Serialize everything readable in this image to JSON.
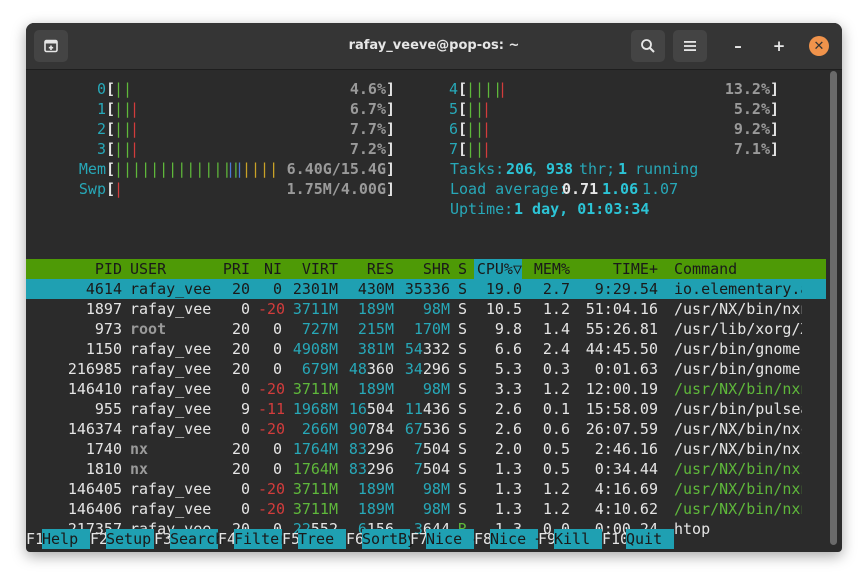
{
  "window": {
    "title": "rafay_veeve@pop-os: ~"
  },
  "titlebar_icons": {
    "new_tab": "new-tab-icon",
    "search": "search-icon",
    "menu": "hamburger-menu-icon",
    "minimize": "minimize-icon",
    "maximize": "maximize-icon",
    "close": "close-icon"
  },
  "window_controls": {
    "minimize": "–",
    "maximize": "+",
    "close": "✕"
  },
  "cpus": [
    {
      "id": "0",
      "bars": [
        [
          "||",
          "green"
        ]
      ],
      "percent": "4.6%"
    },
    {
      "id": "1",
      "bars": [
        [
          "||",
          "green"
        ],
        [
          "|",
          "red"
        ]
      ],
      "percent": "6.7%"
    },
    {
      "id": "2",
      "bars": [
        [
          "||",
          "green"
        ],
        [
          "|",
          "red"
        ]
      ],
      "percent": "7.7%"
    },
    {
      "id": "3",
      "bars": [
        [
          "||",
          "green"
        ],
        [
          "|",
          "red"
        ]
      ],
      "percent": "7.2%"
    },
    {
      "id": "4",
      "bars": [
        [
          "||||",
          "green"
        ],
        [
          "|",
          "red"
        ]
      ],
      "percent": "13.2%"
    },
    {
      "id": "5",
      "bars": [
        [
          "||",
          "green"
        ],
        [
          "|",
          "red"
        ]
      ],
      "percent": "5.2%"
    },
    {
      "id": "6",
      "bars": [
        [
          "||",
          "green"
        ],
        [
          "|",
          "red"
        ]
      ],
      "percent": "9.2%"
    },
    {
      "id": "7",
      "bars": [
        [
          "||",
          "green"
        ],
        [
          "|",
          "red"
        ]
      ],
      "percent": "7.1%"
    }
  ],
  "mem": {
    "label": "Mem",
    "bars": [
      [
        "||||||||||||||",
        "green"
      ],
      [
        "||",
        "blue"
      ],
      [
        "||||",
        "yellow"
      ]
    ],
    "value": "6.40G/15.4G"
  },
  "swp": {
    "label": "Swp",
    "bars": [
      [
        "|",
        "red"
      ]
    ],
    "value": "1.75M/4.00G"
  },
  "tasks": {
    "label": "Tasks: ",
    "count": "206",
    "sep": ", ",
    "threads": "938",
    "thr_label": " thr; ",
    "running": "1",
    "running_label": " running"
  },
  "load": {
    "label": "Load average: ",
    "one": "0.71",
    "five": "1.06",
    "fifteen": "1.07"
  },
  "uptime": {
    "label": "Uptime: ",
    "value": "1 day, 01:03:34"
  },
  "columns": [
    "PID",
    "USER",
    "PRI",
    "NI",
    "VIRT",
    "RES",
    "SHR",
    "S",
    "CPU%▽",
    "MEM%",
    "TIME+",
    "Command"
  ],
  "processes": [
    {
      "pid": "4614",
      "user": "rafay_vee",
      "pri": "20",
      "ni": "0",
      "virt": "2301M",
      "res": "430M",
      "shr": "35336",
      "s": "S",
      "cpu": "19.0",
      "mem": "2.7",
      "time": "9:29.54",
      "cmd": "io.elementary.a",
      "selected": true
    },
    {
      "pid": "1897",
      "user": "rafay_vee",
      "pri": "0",
      "ni": "-20",
      "virt": "3711M",
      "res": "189M",
      "shr": "98M",
      "s": "S",
      "cpu": "10.5",
      "mem": "1.2",
      "time": "51:04.16",
      "cmd": "/usr/NX/bin/nxn"
    },
    {
      "pid": "973",
      "user": "root",
      "pri": "20",
      "ni": "0",
      "virt": "727M",
      "res": "215M",
      "shr": "170M",
      "s": "S",
      "cpu": "9.8",
      "mem": "1.4",
      "time": "55:26.81",
      "cmd": "/usr/lib/xorg/X"
    },
    {
      "pid": "1150",
      "user": "rafay_vee",
      "pri": "20",
      "ni": "0",
      "virt": "4908M",
      "res": "381M",
      "shr": "54332",
      "s": "S",
      "cpu": "6.6",
      "mem": "2.4",
      "time": "44:45.50",
      "cmd": "/usr/bin/gnome-"
    },
    {
      "pid": "216985",
      "user": "rafay_vee",
      "pri": "20",
      "ni": "0",
      "virt": "679M",
      "res": "48360",
      "shr": "34296",
      "s": "S",
      "cpu": "5.3",
      "mem": "0.3",
      "time": "0:01.63",
      "cmd": "/usr/bin/gnome-"
    },
    {
      "pid": "146410",
      "user": "rafay_vee",
      "pri": "0",
      "ni": "-20",
      "virt": "3711M",
      "res": "189M",
      "shr": "98M",
      "s": "S",
      "cpu": "3.3",
      "mem": "1.2",
      "time": "12:00.19",
      "cmd": "/usr/NX/bin/nxn",
      "thread": true
    },
    {
      "pid": "955",
      "user": "rafay_vee",
      "pri": "9",
      "ni": "-11",
      "virt": "1968M",
      "res": "16504",
      "shr": "11436",
      "s": "S",
      "cpu": "2.6",
      "mem": "0.1",
      "time": "15:58.09",
      "cmd": "/usr/bin/pulsea"
    },
    {
      "pid": "146374",
      "user": "rafay_vee",
      "pri": "0",
      "ni": "-20",
      "virt": "266M",
      "res": "90784",
      "shr": "67536",
      "s": "S",
      "cpu": "2.6",
      "mem": "0.6",
      "time": "26:07.59",
      "cmd": "/usr/NX/bin/nxc"
    },
    {
      "pid": "1740",
      "user": "nx",
      "pri": "20",
      "ni": "0",
      "virt": "1764M",
      "res": "83296",
      "shr": "7504",
      "s": "S",
      "cpu": "2.0",
      "mem": "0.5",
      "time": "2:46.16",
      "cmd": "/usr/NX/bin/nxs"
    },
    {
      "pid": "1810",
      "user": "nx",
      "pri": "20",
      "ni": "0",
      "virt": "1764M",
      "res": "83296",
      "shr": "7504",
      "s": "S",
      "cpu": "1.3",
      "mem": "0.5",
      "time": "0:34.44",
      "cmd": "/usr/NX/bin/nxs",
      "thread": true
    },
    {
      "pid": "146405",
      "user": "rafay_vee",
      "pri": "0",
      "ni": "-20",
      "virt": "3711M",
      "res": "189M",
      "shr": "98M",
      "s": "S",
      "cpu": "1.3",
      "mem": "1.2",
      "time": "4:16.69",
      "cmd": "/usr/NX/bin/nxn",
      "thread": true
    },
    {
      "pid": "146406",
      "user": "rafay_vee",
      "pri": "0",
      "ni": "-20",
      "virt": "3711M",
      "res": "189M",
      "shr": "98M",
      "s": "S",
      "cpu": "1.3",
      "mem": "1.2",
      "time": "4:10.62",
      "cmd": "/usr/NX/bin/nxn",
      "thread": true
    },
    {
      "pid": "217357",
      "user": "rafay_vee",
      "pri": "20",
      "ni": "0",
      "virt": "22552",
      "res": "6156",
      "shr": "3644",
      "s": "R",
      "cpu": "1.3",
      "mem": "0.0",
      "time": "0:00.24",
      "cmd": "htop"
    }
  ],
  "function_keys": [
    {
      "key": "F1",
      "label": "Help  "
    },
    {
      "key": "F2",
      "label": "Setup "
    },
    {
      "key": "F3",
      "label": "Search"
    },
    {
      "key": "F4",
      "label": "Filter"
    },
    {
      "key": "F5",
      "label": "Tree  "
    },
    {
      "key": "F6",
      "label": "SortBy"
    },
    {
      "key": "F7",
      "label": "Nice -"
    },
    {
      "key": "F8",
      "label": "Nice +"
    },
    {
      "key": "F9",
      "label": "Kill  "
    },
    {
      "key": "F10",
      "label": "Quit  "
    }
  ],
  "colors": {
    "window_bg": "#2b2b2b",
    "titlebar_bg": "#353535",
    "header_green": "#4e9a06",
    "selection_cyan": "#1fa0b2",
    "close_orange": "#f0934b"
  }
}
